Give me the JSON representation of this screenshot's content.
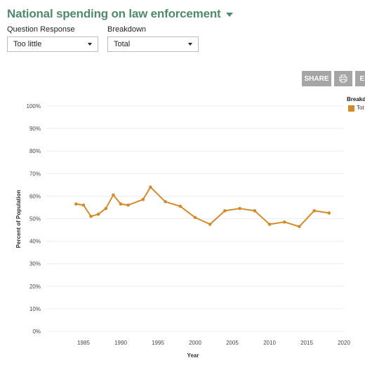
{
  "header": {
    "title": "National spending on law enforcement"
  },
  "controls": {
    "question_label": "Question Response",
    "question_value": "Too little",
    "breakdown_label": "Breakdown",
    "breakdown_value": "Total"
  },
  "toolbar": {
    "share_label": "SHARE",
    "print_icon": "printer-icon",
    "third_label": "E"
  },
  "legend": {
    "title": "Breakd",
    "items": [
      {
        "label": "Tot",
        "color": "#d48a2a"
      }
    ]
  },
  "chart_data": {
    "type": "line",
    "xlabel": "Year",
    "ylabel": "Percent of Population",
    "xlim": [
      1980,
      2020
    ],
    "ylim": [
      0,
      100
    ],
    "x_ticks": [
      1985,
      1990,
      1995,
      2000,
      2005,
      2010,
      2015,
      2020
    ],
    "y_ticks": [
      0,
      10,
      20,
      30,
      40,
      50,
      60,
      70,
      80,
      90,
      100
    ],
    "grid": true,
    "legend_position": "top-right",
    "series": [
      {
        "name": "Total",
        "color": "#d48a2a",
        "x": [
          1984,
          1985,
          1986,
          1987,
          1988,
          1989,
          1990,
          1991,
          1993,
          1994,
          1996,
          1998,
          2000,
          2002,
          2004,
          2006,
          2008,
          2010,
          2012,
          2014,
          2016,
          2018
        ],
        "values": [
          56.5,
          56,
          51,
          52,
          54.5,
          60.5,
          56.5,
          56,
          58.5,
          64,
          57.5,
          55.5,
          50.5,
          47.5,
          53.5,
          54.5,
          53.5,
          47.5,
          48.5,
          46.5,
          53.5,
          52.5
        ]
      }
    ]
  }
}
